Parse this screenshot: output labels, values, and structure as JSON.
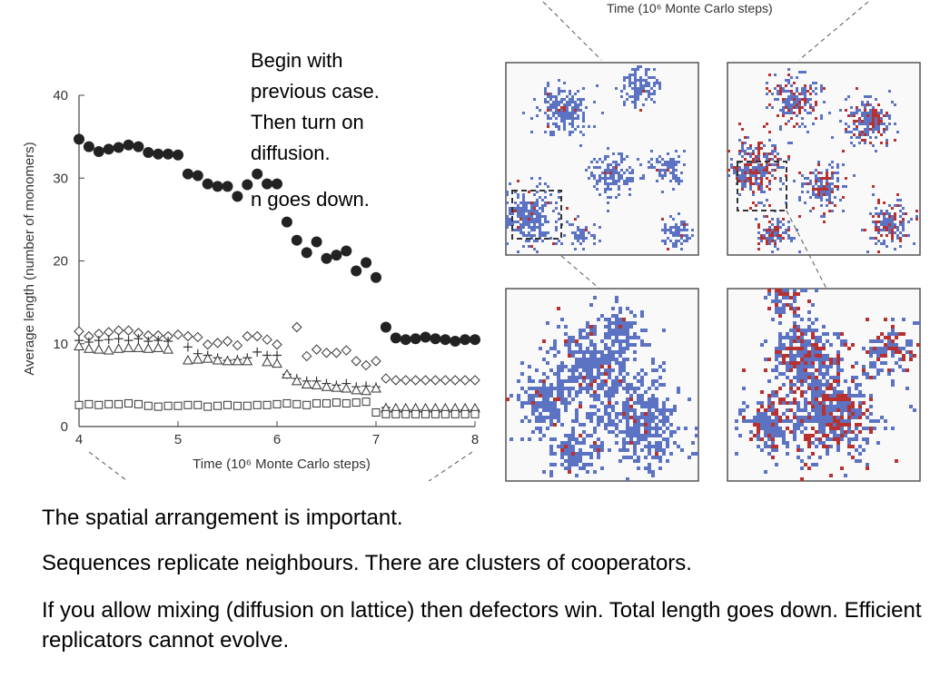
{
  "top_caption": "Time (10⁶ Monte Carlo steps)",
  "annotation": {
    "lines": [
      "Begin with",
      "previous case.",
      "Then turn on",
      "diffusion."
    ],
    "note": "n goes down."
  },
  "paragraphs": [
    "The spatial arrangement is important.",
    "Sequences replicate neighbours. There are clusters of cooperators.",
    "If you allow mixing (diffusion on lattice) then defectors win. Total length goes down. Efficient replicators cannot evolve."
  ],
  "colors": {
    "cooperator": "#5b73c2",
    "defector": "#b8312f",
    "grid_border": "#555555"
  },
  "chart_data": {
    "type": "scatter",
    "xlabel": "Time (10⁶ Monte Carlo steps)",
    "ylabel": "Average length (number of monomers)",
    "xlim": [
      4,
      8
    ],
    "ylim": [
      0,
      40
    ],
    "xticks": [
      4,
      5,
      6,
      7,
      8
    ],
    "yticks": [
      0,
      10,
      20,
      30,
      40
    ],
    "grid": false,
    "series": [
      {
        "marker": "filled-circle",
        "x": [
          4.0,
          4.1,
          4.2,
          4.3,
          4.4,
          4.5,
          4.6,
          4.7,
          4.8,
          4.9,
          5.0,
          5.1,
          5.2,
          5.3,
          5.4,
          5.5,
          5.6,
          5.7,
          5.8,
          5.9,
          6.0,
          6.1,
          6.2,
          6.3,
          6.4,
          6.5,
          6.6,
          6.7,
          6.8,
          6.9,
          7.0,
          7.1,
          7.2,
          7.3,
          7.4,
          7.5,
          7.6,
          7.7,
          7.8,
          7.9,
          8.0
        ],
        "y": [
          34.7,
          33.8,
          33.2,
          33.5,
          33.7,
          34.0,
          33.8,
          33.1,
          32.9,
          32.9,
          32.8,
          30.5,
          30.3,
          29.3,
          29.0,
          29.0,
          27.8,
          29.2,
          30.5,
          29.3,
          29.3,
          24.7,
          22.5,
          21.0,
          22.3,
          20.3,
          20.7,
          21.2,
          18.8,
          19.8,
          18.0,
          12.0,
          10.7,
          10.5,
          10.6,
          10.8,
          10.6,
          10.5,
          10.3,
          10.5,
          10.5
        ]
      },
      {
        "marker": "open-diamond",
        "x": [
          4.0,
          4.1,
          4.2,
          4.3,
          4.4,
          4.5,
          4.6,
          4.7,
          4.8,
          4.9,
          5.0,
          5.1,
          5.2,
          5.3,
          5.4,
          5.5,
          5.6,
          5.7,
          5.8,
          5.9,
          6.0,
          6.2,
          6.3,
          6.4,
          6.5,
          6.6,
          6.7,
          6.8,
          6.9,
          7.0,
          7.1,
          7.2,
          7.3,
          7.4,
          7.5,
          7.6,
          7.7,
          7.8,
          7.9,
          8.0
        ],
        "y": [
          11.5,
          10.9,
          11.2,
          11.4,
          11.6,
          11.6,
          11.3,
          11.0,
          11.0,
          10.9,
          11.1,
          10.9,
          10.8,
          9.9,
          10.1,
          10.3,
          9.8,
          10.9,
          10.9,
          10.5,
          9.9,
          12.0,
          8.5,
          9.3,
          8.9,
          8.9,
          9.2,
          7.9,
          7.4,
          7.9,
          5.8,
          5.6,
          5.6,
          5.6,
          5.6,
          5.6,
          5.6,
          5.6,
          5.6,
          5.6
        ]
      },
      {
        "marker": "plus",
        "x": [
          4.0,
          4.1,
          4.2,
          4.3,
          4.4,
          4.5,
          4.6,
          4.7,
          4.8,
          4.9,
          5.1,
          5.2,
          5.3,
          5.4,
          5.5,
          5.6,
          5.7,
          5.8,
          5.9,
          6.0,
          6.1,
          6.2,
          6.3,
          6.4,
          6.5,
          6.6,
          6.7,
          6.8,
          6.9,
          7.0,
          7.1,
          7.2,
          7.3,
          7.4,
          7.5,
          7.6,
          7.7,
          7.8,
          7.9,
          8.0
        ],
        "y": [
          10.4,
          10.2,
          10.4,
          10.5,
          10.6,
          10.4,
          10.6,
          10.3,
          10.4,
          10.3,
          9.6,
          8.8,
          8.6,
          8.3,
          8.0,
          8.1,
          8.3,
          9.0,
          8.6,
          8.6,
          6.3,
          5.8,
          5.5,
          5.5,
          5.2,
          5.0,
          5.2,
          4.8,
          4.9,
          4.8,
          2.3,
          2.0,
          2.0,
          2.0,
          2.0,
          2.0,
          2.0,
          2.0,
          2.0,
          2.0
        ]
      },
      {
        "marker": "open-triangle",
        "x": [
          4.0,
          4.1,
          4.2,
          4.3,
          4.4,
          4.5,
          4.6,
          4.7,
          4.8,
          4.9,
          5.1,
          5.2,
          5.3,
          5.4,
          5.5,
          5.6,
          5.7,
          5.9,
          6.0,
          6.1,
          6.2,
          6.3,
          6.4,
          6.5,
          6.6,
          6.7,
          6.8,
          6.9,
          7.0,
          7.1,
          7.2,
          7.3,
          7.4,
          7.5,
          7.6,
          7.7,
          7.8,
          7.9,
          8.0
        ],
        "y": [
          9.7,
          9.4,
          9.3,
          9.2,
          9.4,
          9.5,
          9.5,
          9.4,
          9.5,
          9.3,
          8.0,
          8.1,
          8.2,
          8.0,
          7.9,
          7.9,
          7.9,
          7.8,
          7.6,
          6.3,
          5.5,
          5.1,
          5.0,
          4.8,
          4.7,
          4.6,
          4.4,
          4.3,
          4.6,
          2.2,
          2.2,
          2.2,
          2.2,
          2.2,
          2.2,
          2.2,
          2.2,
          2.2,
          2.2
        ]
      },
      {
        "marker": "open-square",
        "x": [
          4.0,
          4.1,
          4.2,
          4.3,
          4.4,
          4.5,
          4.6,
          4.7,
          4.8,
          4.9,
          5.0,
          5.1,
          5.2,
          5.3,
          5.4,
          5.5,
          5.6,
          5.7,
          5.8,
          5.9,
          6.0,
          6.1,
          6.2,
          6.3,
          6.4,
          6.5,
          6.6,
          6.7,
          6.8,
          6.9,
          7.0,
          7.1,
          7.2,
          7.3,
          7.4,
          7.5,
          7.6,
          7.7,
          7.8,
          7.9,
          8.0
        ],
        "y": [
          2.6,
          2.7,
          2.6,
          2.7,
          2.7,
          2.8,
          2.7,
          2.5,
          2.4,
          2.5,
          2.5,
          2.6,
          2.6,
          2.4,
          2.5,
          2.6,
          2.5,
          2.5,
          2.6,
          2.6,
          2.7,
          2.8,
          2.7,
          2.6,
          2.8,
          2.8,
          2.9,
          2.8,
          2.9,
          3.0,
          1.7,
          1.5,
          1.5,
          1.5,
          1.5,
          1.5,
          1.5,
          1.5,
          1.5,
          1.5,
          1.5
        ]
      }
    ]
  }
}
